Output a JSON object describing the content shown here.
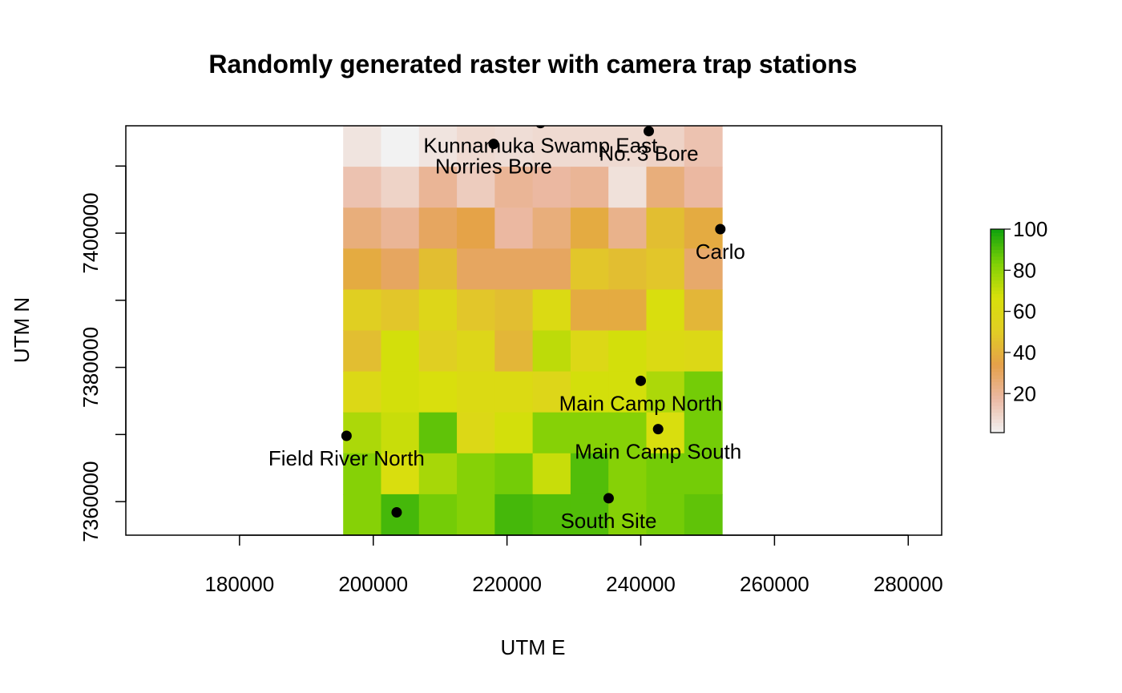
{
  "chart_data": {
    "type": "heatmap",
    "title": "Randomly generated raster with camera trap stations",
    "xlabel": "UTM E",
    "ylabel": "UTM N",
    "xlim": [
      163000,
      285000
    ],
    "ylim": [
      7355000,
      7416000
    ],
    "xticks": [
      180000,
      200000,
      220000,
      240000,
      260000,
      280000
    ],
    "xtick_labels": [
      "180000",
      "200000",
      "220000",
      "240000",
      "260000",
      "280000"
    ],
    "yticks": [
      7360000,
      7370000,
      7380000,
      7390000,
      7400000,
      7410000
    ],
    "ytick_labels": [
      "7360000",
      "",
      "7380000",
      "",
      "7400000",
      ""
    ],
    "grid": false,
    "raster": {
      "x_start": 195500,
      "cell_width": 5667,
      "y_top": 7416000,
      "cell_height": 6100,
      "ncol": 10,
      "nrow": 10,
      "values": [
        [
          5,
          1,
          5,
          8,
          7,
          8,
          8,
          8,
          10,
          15
        ],
        [
          15,
          10,
          20,
          12,
          20,
          18,
          20,
          6,
          25,
          18
        ],
        [
          25,
          20,
          30,
          35,
          18,
          25,
          38,
          22,
          45,
          38
        ],
        [
          38,
          30,
          45,
          30,
          30,
          30,
          48,
          45,
          48,
          28
        ],
        [
          52,
          48,
          58,
          48,
          45,
          62,
          38,
          38,
          65,
          42
        ],
        [
          45,
          68,
          52,
          58,
          42,
          72,
          60,
          68,
          62,
          60
        ],
        [
          60,
          68,
          66,
          62,
          62,
          58,
          68,
          68,
          75,
          85
        ],
        [
          75,
          70,
          88,
          60,
          68,
          82,
          82,
          82,
          65,
          85
        ],
        [
          82,
          65,
          76,
          82,
          85,
          70,
          90,
          82,
          85,
          85
        ],
        [
          82,
          92,
          85,
          82,
          92,
          90,
          90,
          82,
          85,
          88
        ]
      ]
    },
    "legend": {
      "position": "right",
      "ticks": [
        20,
        40,
        60,
        80,
        100
      ],
      "tick_labels": [
        "20",
        "40",
        "60",
        "80",
        "100"
      ],
      "min": 1,
      "max": 100,
      "color_stops": [
        "#f2f2f2",
        "#ebb9a4",
        "#e5a04a",
        "#e1cd24",
        "#d8e00b",
        "#7ed006",
        "#0fa20d"
      ]
    },
    "stations": [
      {
        "name": "Norries Bore",
        "x": 218000,
        "y": 7413300
      },
      {
        "name": "Kunnamuka Swamp East",
        "x": 225000,
        "y": 7416400
      },
      {
        "name": "No. 3 Bore",
        "x": 241200,
        "y": 7415200
      },
      {
        "name": "Carlo",
        "x": 251900,
        "y": 7400600
      },
      {
        "name": "Main Camp North",
        "x": 240000,
        "y": 7378000
      },
      {
        "name": "Field River North",
        "x": 196000,
        "y": 7369800
      },
      {
        "name": "Main Camp South",
        "x": 242600,
        "y": 7370800
      },
      {
        "name": "South Site",
        "x": 235200,
        "y": 7360500
      },
      {
        "name": "",
        "x": 203500,
        "y": 7358400
      }
    ]
  }
}
